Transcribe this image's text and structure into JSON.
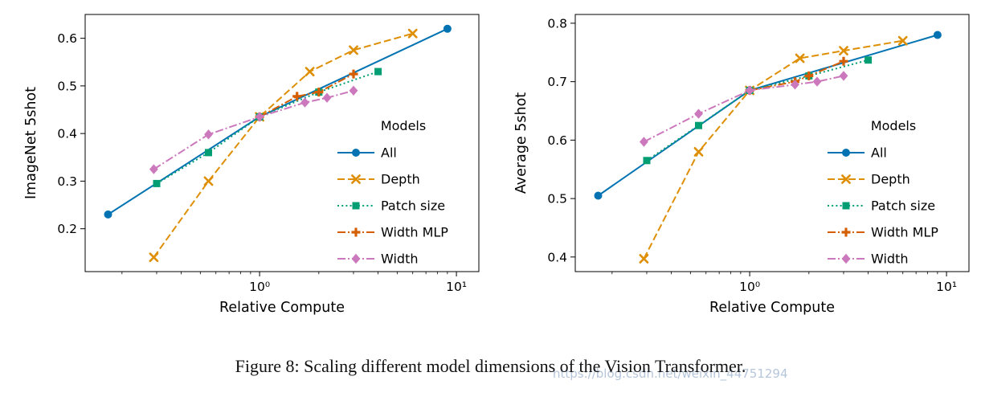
{
  "page": {
    "background": "#ffffff"
  },
  "caption": {
    "text": "Figure 8: Scaling different model dimensions of the Vision Transformer."
  },
  "watermark": {
    "text": "https://blog.csdn.net/weixin_44751294",
    "color": "#aebfd6"
  },
  "series_meta": [
    {
      "name": "All",
      "color": "#0173b2",
      "dash": "solid",
      "marker": "circle"
    },
    {
      "name": "Depth",
      "color": "#de8f05",
      "dash": "dashed",
      "marker": "x"
    },
    {
      "name": "Patch size",
      "color": "#029e73",
      "dash": "dotted",
      "marker": "square"
    },
    {
      "name": "Width MLP",
      "color": "#d55e00",
      "dash": "dashdot",
      "marker": "plus"
    },
    {
      "name": "Width",
      "color": "#cc78bc",
      "dash": "dashdot",
      "marker": "diamond"
    }
  ],
  "chart_data": [
    {
      "type": "line",
      "title": "",
      "xlabel": "Relative Compute",
      "ylabel": "ImageNet 5shot",
      "xscale": "log",
      "xlim": [
        0.13,
        13
      ],
      "ylim": [
        0.11,
        0.65
      ],
      "yticks": [
        0.2,
        0.3,
        0.4,
        0.5,
        0.6
      ],
      "xticks": [
        1,
        10
      ],
      "xtick_labels": [
        "10⁰",
        "10¹"
      ],
      "legend_title": "Models",
      "legend_position": "right-lower",
      "grid": false,
      "series": [
        {
          "name": "All",
          "x": [
            0.17,
            1.0,
            9.0
          ],
          "y": [
            0.23,
            0.435,
            0.62
          ]
        },
        {
          "name": "Depth",
          "x": [
            0.29,
            0.55,
            1.0,
            1.8,
            3.0,
            6.0
          ],
          "y": [
            0.14,
            0.3,
            0.435,
            0.53,
            0.575,
            0.61
          ]
        },
        {
          "name": "Patch size",
          "x": [
            0.3,
            0.55,
            1.0,
            2.0,
            4.0
          ],
          "y": [
            0.295,
            0.36,
            0.435,
            0.487,
            0.53
          ]
        },
        {
          "name": "Width MLP",
          "x": [
            1.0,
            1.55,
            2.0,
            3.0
          ],
          "y": [
            0.435,
            0.478,
            0.487,
            0.525
          ]
        },
        {
          "name": "Width",
          "x": [
            0.29,
            0.55,
            1.0,
            1.7,
            2.2,
            3.0
          ],
          "y": [
            0.325,
            0.398,
            0.435,
            0.465,
            0.475,
            0.49
          ]
        }
      ]
    },
    {
      "type": "line",
      "title": "",
      "xlabel": "Relative Compute",
      "ylabel": "Average 5shot",
      "xscale": "log",
      "xlim": [
        0.13,
        13
      ],
      "ylim": [
        0.375,
        0.815
      ],
      "yticks": [
        0.4,
        0.5,
        0.6,
        0.7,
        0.8
      ],
      "xticks": [
        1,
        10
      ],
      "xtick_labels": [
        "10⁰",
        "10¹"
      ],
      "legend_title": "Models",
      "legend_position": "right-lower",
      "grid": false,
      "series": [
        {
          "name": "All",
          "x": [
            0.17,
            1.0,
            9.0
          ],
          "y": [
            0.505,
            0.685,
            0.78
          ]
        },
        {
          "name": "Depth",
          "x": [
            0.29,
            0.55,
            1.0,
            1.8,
            3.0,
            6.0
          ],
          "y": [
            0.397,
            0.58,
            0.685,
            0.74,
            0.753,
            0.77
          ]
        },
        {
          "name": "Patch size",
          "x": [
            0.3,
            0.55,
            1.0,
            2.0,
            4.0
          ],
          "y": [
            0.565,
            0.625,
            0.685,
            0.71,
            0.737
          ]
        },
        {
          "name": "Width MLP",
          "x": [
            1.0,
            1.7,
            2.0,
            3.0
          ],
          "y": [
            0.685,
            0.7,
            0.71,
            0.735
          ]
        },
        {
          "name": "Width",
          "x": [
            0.29,
            0.55,
            1.0,
            1.7,
            2.2,
            3.0
          ],
          "y": [
            0.597,
            0.645,
            0.685,
            0.695,
            0.7,
            0.71
          ]
        }
      ]
    }
  ]
}
